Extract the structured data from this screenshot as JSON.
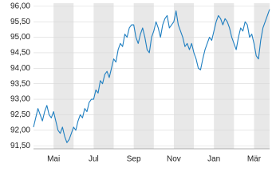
{
  "chart_data": {
    "type": "line",
    "categories": [
      null,
      null,
      null,
      null,
      null,
      null,
      null,
      null,
      null,
      "Mai",
      null,
      null,
      null,
      null,
      null,
      null,
      null,
      null,
      null,
      null,
      null,
      null,
      null,
      null,
      null,
      null,
      null,
      "Jul",
      null,
      null,
      null,
      null,
      null,
      null,
      null,
      null,
      null,
      null,
      null,
      null,
      null,
      null,
      null,
      null,
      null,
      "Sep",
      null,
      null,
      null,
      null,
      null,
      null,
      null,
      null,
      null,
      null,
      null,
      null,
      null,
      null,
      null,
      null,
      null,
      "Nov",
      null,
      null,
      null,
      null,
      null,
      null,
      null,
      null,
      null,
      null,
      null,
      null,
      null,
      null,
      null,
      null,
      null,
      "Jan",
      null,
      null,
      null,
      null,
      null,
      null,
      null,
      null,
      null,
      null,
      null,
      null,
      null,
      null,
      null,
      null,
      null,
      "Mär",
      null,
      null,
      null,
      null,
      null,
      null,
      null
    ],
    "series": [
      {
        "color": "#1f7fc1",
        "values": [
          92.1,
          92.4,
          92.7,
          92.5,
          92.3,
          92.6,
          92.8,
          92.5,
          92.4,
          92.6,
          92.3,
          92.0,
          91.9,
          92.1,
          91.8,
          91.6,
          91.7,
          91.9,
          92.1,
          92.0,
          92.3,
          92.5,
          92.4,
          92.7,
          92.6,
          92.9,
          93.0,
          93.0,
          93.3,
          93.2,
          93.6,
          93.5,
          93.8,
          93.9,
          93.7,
          94.0,
          94.3,
          94.2,
          94.6,
          94.8,
          94.7,
          95.1,
          95.0,
          95.3,
          95.4,
          95.4,
          95.0,
          94.8,
          95.1,
          95.3,
          95.0,
          94.6,
          94.5,
          95.0,
          95.2,
          95.5,
          95.3,
          95.0,
          95.4,
          95.6,
          95.7,
          95.3,
          95.4,
          95.5,
          95.85,
          95.4,
          95.2,
          95.0,
          94.7,
          94.8,
          94.6,
          94.8,
          94.5,
          94.3,
          94.0,
          93.95,
          94.3,
          94.6,
          94.8,
          95.0,
          94.9,
          95.2,
          95.5,
          95.7,
          95.6,
          95.4,
          95.6,
          95.5,
          95.3,
          95.0,
          94.8,
          94.6,
          95.0,
          95.3,
          95.2,
          95.5,
          95.4,
          95.0,
          95.1,
          94.8,
          94.4,
          94.3,
          94.9,
          95.3,
          95.5,
          95.7,
          95.9
        ]
      }
    ],
    "ylim": [
      91.4,
      96.1
    ],
    "yticks": [
      {
        "value": 91.5,
        "label": "91,50"
      },
      {
        "value": 92,
        "label": "92,00"
      },
      {
        "value": 92.5,
        "label": "92,50"
      },
      {
        "value": 93,
        "label": "93,00"
      },
      {
        "value": 93.5,
        "label": "93,50"
      },
      {
        "value": 94,
        "label": "94,00"
      },
      {
        "value": 94.5,
        "label": "94,50"
      },
      {
        "value": 95,
        "label": "95,00"
      },
      {
        "value": 95.5,
        "label": "95,50"
      },
      {
        "value": 96,
        "label": "96,00"
      }
    ],
    "grid": true
  }
}
